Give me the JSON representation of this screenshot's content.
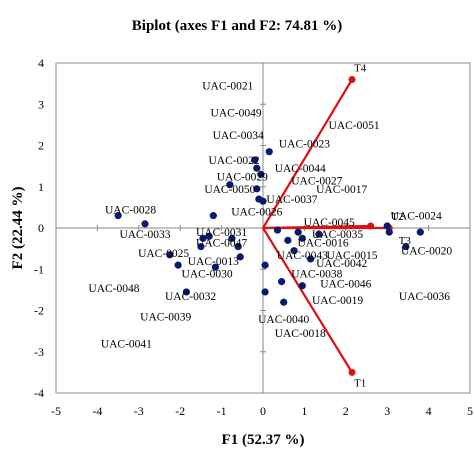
{
  "chart_data": {
    "type": "scatter",
    "title": "Biplot (axes F1 and F2: 74.81 %)",
    "xlabel": "F1 (52.37 %)",
    "ylabel": "F2 (22.44 %)",
    "xlim": [
      -5,
      5
    ],
    "ylim": [
      -4,
      4
    ],
    "xticks": [
      -5,
      -4,
      -3,
      -2,
      -1,
      0,
      1,
      2,
      3,
      4,
      5
    ],
    "yticks": [
      -4,
      -3,
      -2,
      -1,
      0,
      1,
      2,
      3,
      4
    ],
    "point_color": "#0a1a6b",
    "vector_color": "#e01010",
    "observations": [
      {
        "label": "UAC-0021",
        "x": -0.85,
        "y": 3.45
      },
      {
        "label": "UAC-0049",
        "x": -0.65,
        "y": 2.8
      },
      {
        "label": "UAC-0034",
        "x": -0.6,
        "y": 2.25
      },
      {
        "label": "UAC-0051",
        "x": 2.2,
        "y": 2.5
      },
      {
        "label": "UAC-0023",
        "x": 1.0,
        "y": 2.05
      },
      {
        "label": "UAC-0022",
        "x": -0.7,
        "y": 1.65
      },
      {
        "label": "UAC-0044",
        "x": 0.9,
        "y": 1.45
      },
      {
        "label": "UAC-0029",
        "x": -0.5,
        "y": 1.25
      },
      {
        "label": "UAC-0027",
        "x": 1.3,
        "y": 1.15
      },
      {
        "label": "UAC-0050",
        "x": -0.8,
        "y": 0.95
      },
      {
        "label": "UAC-0017",
        "x": 1.9,
        "y": 0.95
      },
      {
        "label": "UAC-0037",
        "x": 0.7,
        "y": 0.7
      },
      {
        "label": "UAC-0028",
        "x": -3.2,
        "y": 0.45
      },
      {
        "label": "UAC-0026",
        "x": -0.15,
        "y": 0.4
      },
      {
        "label": "UAC-0024",
        "x": 3.7,
        "y": 0.3
      },
      {
        "label": "UAC-0045",
        "x": 1.6,
        "y": 0.15
      },
      {
        "label": "UAC-0033",
        "x": -2.85,
        "y": -0.15
      },
      {
        "label": "UAC-0031",
        "x": -1.0,
        "y": -0.1
      },
      {
        "label": "UAC-0035",
        "x": 1.8,
        "y": -0.15
      },
      {
        "label": "UAC-0016",
        "x": 1.45,
        "y": -0.35
      },
      {
        "label": "UAC-0047",
        "x": -1.0,
        "y": -0.35
      },
      {
        "label": "UAC-0025",
        "x": -2.4,
        "y": -0.6
      },
      {
        "label": "UAC-0043",
        "x": 0.95,
        "y": -0.65
      },
      {
        "label": "UAC-0015",
        "x": 2.15,
        "y": -0.65
      },
      {
        "label": "UAC-0013",
        "x": -1.2,
        "y": -0.8
      },
      {
        "label": "UAC-0020",
        "x": 3.95,
        "y": -0.55
      },
      {
        "label": "UAC-0042",
        "x": 1.9,
        "y": -0.85
      },
      {
        "label": "UAC-0030",
        "x": -1.35,
        "y": -1.1
      },
      {
        "label": "UAC-0038",
        "x": 1.3,
        "y": -1.1
      },
      {
        "label": "UAC-0046",
        "x": 2.0,
        "y": -1.35
      },
      {
        "label": "UAC-0048",
        "x": -3.6,
        "y": -1.45
      },
      {
        "label": "UAC-0032",
        "x": -1.75,
        "y": -1.65
      },
      {
        "label": "UAC-0036",
        "x": 3.9,
        "y": -1.65
      },
      {
        "label": "UAC-0019",
        "x": 1.8,
        "y": -1.75
      },
      {
        "label": "UAC-0039",
        "x": -2.35,
        "y": -2.15
      },
      {
        "label": "UAC-0040",
        "x": 0.5,
        "y": -2.2
      },
      {
        "label": "UAC-0018",
        "x": 0.9,
        "y": -2.55
      },
      {
        "label": "UAC-0041",
        "x": -3.3,
        "y": -2.8
      }
    ],
    "unlabeled_points": [
      {
        "x": -0.2,
        "y": 1.65
      },
      {
        "x": -0.15,
        "y": 1.45
      },
      {
        "x": 0.15,
        "y": 1.85
      },
      {
        "x": -0.05,
        "y": 1.3
      },
      {
        "x": -0.8,
        "y": 1.05
      },
      {
        "x": -0.15,
        "y": 0.95
      },
      {
        "x": -0.1,
        "y": 0.7
      },
      {
        "x": 0.0,
        "y": 0.65
      },
      {
        "x": -1.2,
        "y": 0.3
      },
      {
        "x": -3.5,
        "y": 0.3
      },
      {
        "x": -2.85,
        "y": 0.1
      },
      {
        "x": -1.3,
        "y": -0.2
      },
      {
        "x": -1.45,
        "y": -0.25
      },
      {
        "x": -1.5,
        "y": -0.45
      },
      {
        "x": -0.75,
        "y": -0.25
      },
      {
        "x": -0.6,
        "y": -0.45
      },
      {
        "x": -0.55,
        "y": -0.7
      },
      {
        "x": -2.25,
        "y": -0.65
      },
      {
        "x": -2.05,
        "y": -0.9
      },
      {
        "x": -1.15,
        "y": -0.95
      },
      {
        "x": -1.85,
        "y": -1.55
      },
      {
        "x": 0.35,
        "y": -0.05
      },
      {
        "x": 0.85,
        "y": -0.1
      },
      {
        "x": 0.95,
        "y": -0.25
      },
      {
        "x": 0.6,
        "y": -0.3
      },
      {
        "x": 1.35,
        "y": -0.15
      },
      {
        "x": 0.75,
        "y": -0.55
      },
      {
        "x": 1.15,
        "y": -0.75
      },
      {
        "x": 0.05,
        "y": -0.9
      },
      {
        "x": 0.45,
        "y": -1.3
      },
      {
        "x": 0.95,
        "y": -1.4
      },
      {
        "x": 0.05,
        "y": -1.55
      },
      {
        "x": 0.5,
        "y": -1.8
      },
      {
        "x": 3.0,
        "y": 0.05
      },
      {
        "x": 3.05,
        "y": -0.1
      },
      {
        "x": 3.45,
        "y": -0.45
      },
      {
        "x": 3.8,
        "y": -0.1
      }
    ],
    "variables": [
      {
        "label": "T4",
        "x": 2.15,
        "y": 3.6
      },
      {
        "label": "T2",
        "x": 3.05,
        "y": 0.0
      },
      {
        "label": "T3",
        "x": 2.6,
        "y": 0.05
      },
      {
        "label": "T1",
        "x": 2.15,
        "y": -3.5
      }
    ]
  }
}
